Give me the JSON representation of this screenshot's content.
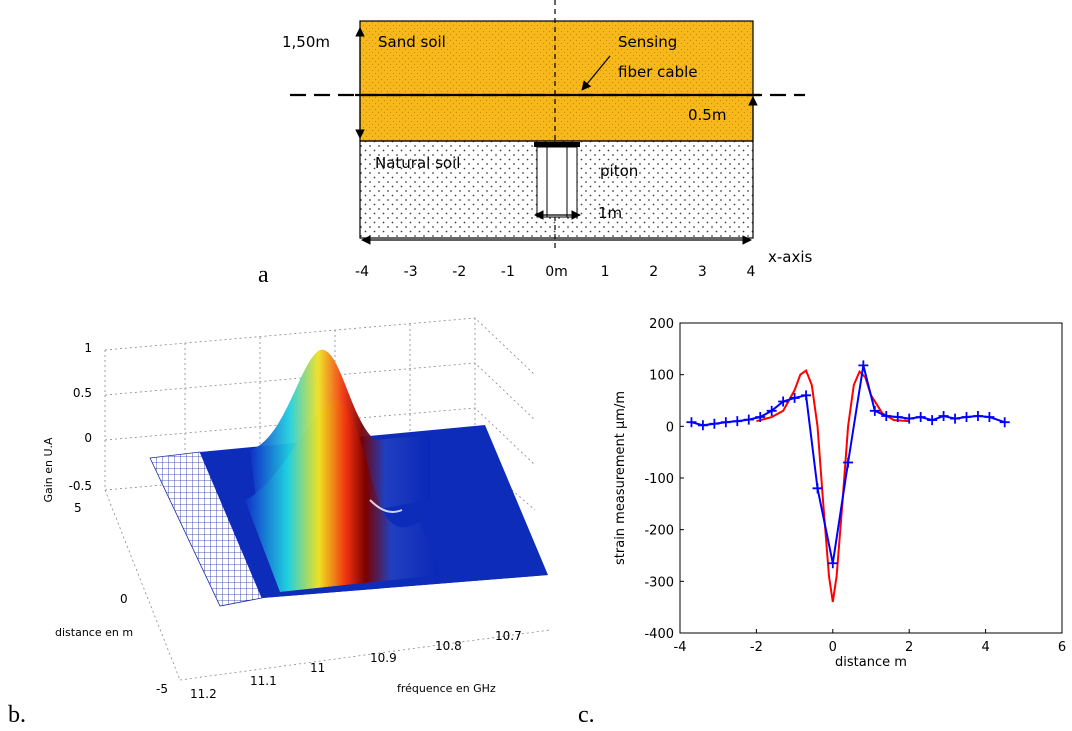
{
  "panel_a": {
    "label": "a",
    "sand_label": "Sand soil",
    "natural_label": "Natural soil",
    "depth_label": "1,50m",
    "cable_label_1": "Sensing",
    "cable_label_2": "fiber cable",
    "half_label": "0.5m",
    "piton_label": "piton",
    "width_label": "1m",
    "axis_label": "x-axis",
    "ticks": [
      "-4",
      "-3",
      "-2",
      "-1",
      "0m",
      "1",
      "2",
      "3",
      "4"
    ],
    "colors": {
      "sand": "#f6b81a",
      "natural": "#f4f4f4"
    }
  },
  "panel_b": {
    "label": "b.",
    "zlabel": "Gain en U.A",
    "ylabel": "distance en m",
    "xlabel": "fréquence en GHz",
    "z_ticks": [
      "1",
      "0.5",
      "0",
      "-0.5"
    ],
    "y_ticks": [
      "5",
      "0",
      "-5"
    ],
    "x_ticks": [
      "11.2",
      "11.1",
      "11",
      "10.9",
      "10.8",
      "10.7"
    ]
  },
  "panel_c": {
    "label": "c.",
    "chart_data": {
      "type": "line",
      "xlabel": "distance m",
      "ylabel": "strain measurement µm/m",
      "xlim": [
        -4,
        6
      ],
      "ylim": [
        -400,
        200
      ],
      "x_ticks": [
        -4,
        -2,
        0,
        2,
        4,
        6
      ],
      "y_ticks": [
        200,
        100,
        0,
        -100,
        -200,
        -300,
        -400
      ],
      "series": [
        {
          "color": "#ff0000",
          "marker": "none",
          "x": [
            -2.0,
            -1.6,
            -1.3,
            -1.0,
            -0.85,
            -0.7,
            -0.55,
            -0.4,
            -0.25,
            -0.1,
            0.0,
            0.1,
            0.25,
            0.4,
            0.55,
            0.7,
            0.85,
            1.0,
            1.3,
            1.6,
            2.0
          ],
          "y": [
            10,
            18,
            30,
            70,
            100,
            108,
            80,
            0,
            -150,
            -290,
            -340,
            -290,
            -150,
            0,
            80,
            106,
            95,
            60,
            25,
            12,
            10
          ]
        },
        {
          "color": "#0000ff",
          "marker": "+",
          "x": [
            -3.7,
            -3.4,
            -3.1,
            -2.8,
            -2.5,
            -2.2,
            -1.9,
            -1.6,
            -1.3,
            -1.0,
            -0.7,
            -0.4,
            0.0,
            0.4,
            0.8,
            1.1,
            1.4,
            1.7,
            2.0,
            2.3,
            2.6,
            2.9,
            3.2,
            3.5,
            3.8,
            4.1,
            4.5
          ],
          "y": [
            8,
            2,
            5,
            8,
            10,
            13,
            18,
            30,
            48,
            55,
            60,
            -120,
            -265,
            -70,
            118,
            30,
            20,
            18,
            15,
            18,
            12,
            20,
            15,
            18,
            20,
            18,
            8
          ]
        }
      ]
    }
  }
}
